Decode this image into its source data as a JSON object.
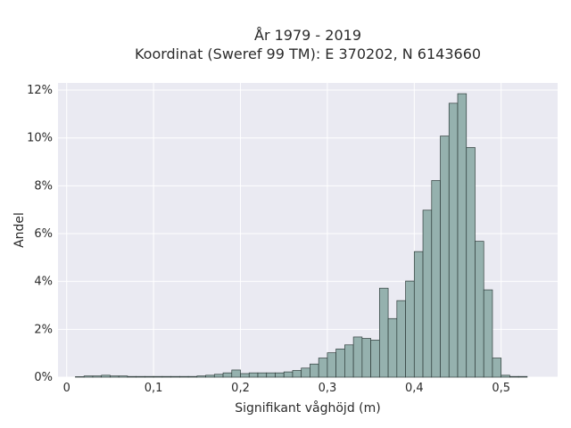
{
  "chart_data": {
    "type": "bar",
    "title": "År 1979 - 2019",
    "subtitle": "Koordinat (Sweref 99 TM): E 370202, N 6143660",
    "xlabel": "Signifikant våghöjd (m)",
    "ylabel": "Andel",
    "xlim": [
      -0.01,
      0.565
    ],
    "ylim": [
      0,
      12.3
    ],
    "x_ticks": [
      0,
      0.1,
      0.2,
      0.3,
      0.4,
      0.5
    ],
    "x_tick_labels": [
      "0",
      "0,1",
      "0,2",
      "0,3",
      "0,4",
      "0,5"
    ],
    "y_ticks": [
      0,
      2,
      4,
      6,
      8,
      10,
      12
    ],
    "y_tick_labels": [
      "0%",
      "2%",
      "4%",
      "6%",
      "8%",
      "10%",
      "12%"
    ],
    "bin_width": 0.01,
    "bin_starts": [
      0.01,
      0.02,
      0.03,
      0.04,
      0.05,
      0.06,
      0.07,
      0.08,
      0.09,
      0.1,
      0.11,
      0.12,
      0.13,
      0.14,
      0.15,
      0.16,
      0.17,
      0.18,
      0.19,
      0.2,
      0.21,
      0.22,
      0.23,
      0.24,
      0.25,
      0.26,
      0.27,
      0.28,
      0.29,
      0.3,
      0.31,
      0.32,
      0.33,
      0.34,
      0.35,
      0.36,
      0.37,
      0.38,
      0.39,
      0.4,
      0.41,
      0.42,
      0.43,
      0.44,
      0.45,
      0.46,
      0.47,
      0.48,
      0.49,
      0.5,
      0.51,
      0.52,
      0.53
    ],
    "values": [
      0.02,
      0.05,
      0.05,
      0.08,
      0.05,
      0.05,
      0.03,
      0.03,
      0.03,
      0.03,
      0.03,
      0.03,
      0.03,
      0.03,
      0.05,
      0.08,
      0.12,
      0.18,
      0.3,
      0.15,
      0.18,
      0.18,
      0.18,
      0.18,
      0.22,
      0.28,
      0.38,
      0.55,
      0.8,
      1.02,
      1.18,
      1.35,
      1.68,
      1.62,
      1.55,
      3.72,
      2.45,
      3.2,
      4.02,
      5.25,
      6.98,
      8.22,
      10.08,
      11.45,
      11.85,
      9.6,
      5.68,
      3.65,
      0.8,
      0.08,
      0.03,
      0.03,
      0.0
    ],
    "bar_color": "#95b1ae",
    "edge_color": "#2f3d3b",
    "background_color": "#eaeaf2",
    "grid": true
  }
}
